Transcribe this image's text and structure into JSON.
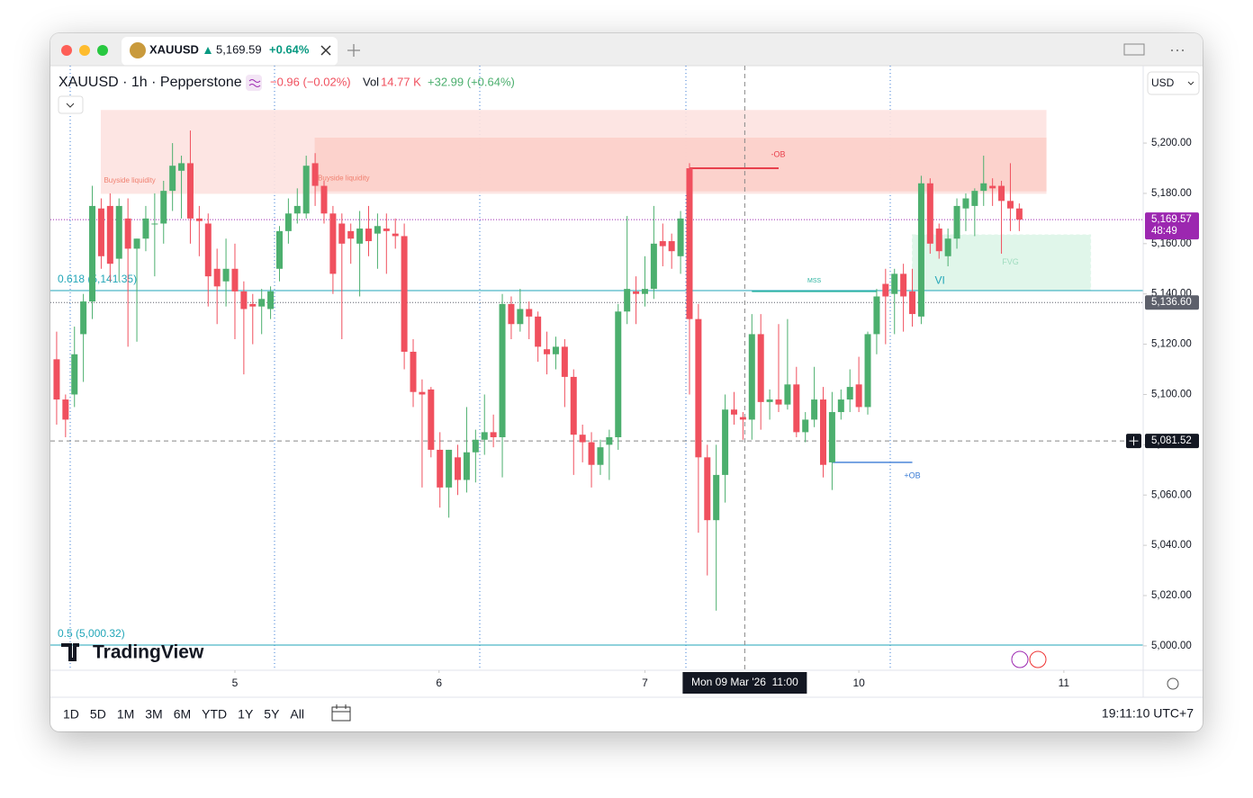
{
  "tab": {
    "symbol": "XAUUSD",
    "price": "5,169.59",
    "change": "+0.64%"
  },
  "legend": {
    "title": "XAUUSD · 1h · Pepperstone",
    "change": "−0.96 (−0.02%)",
    "vol_label": "Vol",
    "vol": "14.77 K",
    "day_change": "+32.99 (+0.64%)"
  },
  "currency": "USD",
  "logo": "TradingView",
  "timeframes": [
    "1D",
    "5D",
    "1M",
    "3M",
    "6M",
    "YTD",
    "1Y",
    "5Y",
    "All"
  ],
  "clock": "19:11:10 UTC+7",
  "chart_data": {
    "type": "candlestick",
    "up_color": "#4caf6e",
    "down_color": "#f0505e",
    "x": [
      0,
      1,
      2,
      3,
      4,
      5,
      6,
      7,
      8,
      9,
      10,
      11,
      12,
      13,
      14,
      15,
      16,
      17,
      18,
      19,
      20,
      21,
      22,
      23,
      24,
      25,
      26,
      27,
      28,
      29,
      30,
      31,
      32,
      33,
      34,
      35,
      36,
      37,
      38,
      39,
      40,
      41,
      42,
      43,
      44,
      45,
      46,
      47,
      48,
      49,
      50,
      51,
      52,
      53,
      54,
      55,
      56,
      57,
      58,
      59,
      60,
      61,
      62,
      63,
      64,
      65,
      66,
      67,
      68,
      69,
      70,
      71,
      72,
      73,
      74,
      75,
      76,
      77,
      78,
      79,
      80,
      81,
      82,
      83,
      84,
      85,
      86,
      87,
      88,
      89,
      90,
      91,
      92,
      93,
      94,
      95,
      96,
      97,
      98,
      99,
      100,
      101,
      102,
      103,
      104,
      105,
      106,
      107,
      108
    ],
    "open": [
      5114,
      5098,
      5100,
      5124,
      5137,
      5174,
      5175,
      5154,
      5170,
      5158,
      5162,
      5168,
      5168,
      5181,
      5189,
      5192,
      5170,
      5168,
      5150,
      5145,
      5150,
      5141,
      5136,
      5135,
      5134,
      5150,
      5165,
      5172,
      5172,
      5192,
      5183,
      5172,
      5168,
      5165,
      5160,
      5166,
      5164,
      5166,
      5164,
      5163,
      5117,
      5101,
      5102,
      5078,
      5063,
      5075,
      5066,
      5077,
      5082,
      5085,
      5083,
      5136,
      5128,
      5134,
      5131,
      5118,
      5116,
      5119,
      5107,
      5084,
      5081,
      5072,
      5080,
      5083,
      5133,
      5141,
      5140,
      5142,
      5161,
      5161,
      5155,
      5190,
      5130,
      5075,
      5050,
      5068,
      5094,
      5091,
      5090,
      5124,
      5097,
      5098,
      5096,
      5104,
      5085,
      5090,
      5098,
      5073,
      5093,
      5098,
      5104,
      5095,
      5124,
      5144,
      5140,
      5148,
      5141,
      5131,
      5184,
      5166,
      5155,
      5162,
      5174,
      5175,
      5181,
      5183,
      5183,
      5177,
      5174
    ],
    "high": [
      5125,
      5100,
      5127,
      5140,
      5183,
      5178,
      5180,
      5178,
      5178,
      5162,
      5175,
      5180,
      5185,
      5200,
      5195,
      5205,
      5175,
      5172,
      5158,
      5162,
      5160,
      5145,
      5140,
      5142,
      5143,
      5167,
      5178,
      5182,
      5195,
      5196,
      5185,
      5175,
      5172,
      5168,
      5173,
      5175,
      5172,
      5172,
      5170,
      5168,
      5122,
      5106,
      5103,
      5085,
      5078,
      5080,
      5095,
      5086,
      5100,
      5092,
      5140,
      5139,
      5142,
      5137,
      5133,
      5125,
      5123,
      5122,
      5110,
      5088,
      5085,
      5082,
      5086,
      5136,
      5171,
      5147,
      5155,
      5175,
      5168,
      5164,
      5173,
      5192,
      5136,
      5080,
      5080,
      5100,
      5101,
      5093,
      5132,
      5132,
      5102,
      5128,
      5130,
      5111,
      5093,
      5111,
      5103,
      5101,
      5102,
      5110,
      5115,
      5125,
      5142,
      5150,
      5150,
      5152,
      5150,
      5187,
      5186,
      5168,
      5166,
      5178,
      5180,
      5182,
      5195,
      5186,
      5185,
      5192,
      5176
    ],
    "low": [
      5088,
      5083,
      5095,
      5105,
      5130,
      5150,
      5145,
      5145,
      5119,
      5121,
      5157,
      5147,
      5160,
      5173,
      5170,
      5160,
      5155,
      5135,
      5128,
      5135,
      5122,
      5108,
      5120,
      5124,
      5130,
      5145,
      5160,
      5168,
      5170,
      5175,
      5168,
      5140,
      5122,
      5152,
      5139,
      5155,
      5150,
      5148,
      5158,
      5110,
      5095,
      5063,
      5075,
      5055,
      5051,
      5060,
      5061,
      5065,
      5076,
      5079,
      5067,
      5122,
      5125,
      5122,
      5113,
      5108,
      5110,
      5095,
      5068,
      5073,
      5063,
      5068,
      5066,
      5078,
      5128,
      5128,
      5135,
      5138,
      5151,
      5150,
      5148,
      5100,
      5045,
      5028,
      5014,
      5057,
      5088,
      5082,
      5082,
      5086,
      5090,
      5093,
      5094,
      5083,
      5081,
      5087,
      5067,
      5062,
      5090,
      5093,
      5093,
      5092,
      5116,
      5120,
      5124,
      5125,
      5127,
      5128,
      5156,
      5154,
      5151,
      5158,
      5165,
      5163,
      5175,
      5175,
      5156,
      5165,
      5165
    ],
    "close": [
      5098,
      5090,
      5116,
      5137,
      5175,
      5155,
      5152,
      5175,
      5158,
      5162,
      5170,
      5168,
      5181,
      5191,
      5192,
      5170,
      5169,
      5147,
      5143,
      5150,
      5141,
      5134,
      5135,
      5138,
      5141,
      5165,
      5172,
      5175,
      5191,
      5183,
      5172,
      5148,
      5160,
      5162,
      5166,
      5161,
      5167,
      5165,
      5163,
      5117,
      5101,
      5100,
      5078,
      5063,
      5078,
      5066,
      5077,
      5082,
      5085,
      5083,
      5136,
      5128,
      5134,
      5131,
      5119,
      5116,
      5119,
      5107,
      5084,
      5081,
      5072,
      5079,
      5083,
      5133,
      5142,
      5140,
      5142,
      5160,
      5159,
      5157,
      5170,
      5130,
      5075,
      5050,
      5068,
      5094,
      5092,
      5090,
      5124,
      5097,
      5098,
      5096,
      5104,
      5085,
      5090,
      5098,
      5072,
      5093,
      5098,
      5103,
      5095,
      5124,
      5139,
      5139,
      5148,
      5139,
      5132,
      5184,
      5160,
      5157,
      5162,
      5175,
      5178,
      5181,
      5184,
      5182,
      5177,
      5174,
      5169.57
    ],
    "xlim": [
      -0.7,
      121.9
    ],
    "ylim": [
      4990.3,
      5230.8
    ],
    "xticks": [
      {
        "value": 20,
        "label": "5"
      },
      {
        "value": 42.9,
        "label": "6"
      },
      {
        "value": 66,
        "label": "7"
      },
      {
        "value": 90,
        "label": "10"
      },
      {
        "value": 113,
        "label": "11"
      }
    ],
    "yticks": [
      {
        "value": 5000,
        "label": "5,000.00"
      },
      {
        "value": 5020,
        "label": "5,020.00"
      },
      {
        "value": 5040,
        "label": "5,040.00"
      },
      {
        "value": 5060,
        "label": "5,060.00"
      },
      {
        "value": 5080,
        "label": "5,080.00"
      },
      {
        "value": 5100,
        "label": "5,100.00"
      },
      {
        "value": 5120,
        "label": "5,120.00"
      },
      {
        "value": 5140,
        "label": "5,140.00"
      },
      {
        "value": 5160,
        "label": "5,160.00"
      },
      {
        "value": 5180,
        "label": "5,180.00"
      },
      {
        "value": 5200,
        "label": "5,200.00"
      }
    ],
    "zones": [
      {
        "label": "Buyside liquidity",
        "x": [
          5,
          111
        ],
        "y": [
          5180,
          5213
        ],
        "color": "#fde3e0"
      },
      {
        "label": "Buyside liquidity",
        "x": [
          29,
          111
        ],
        "y": [
          5181,
          5202
        ],
        "color": "#fcd0ca"
      },
      {
        "label": "FVG",
        "inner_label": "VI",
        "x": [
          96,
          116
        ],
        "y": [
          5141.5,
          5163.5
        ],
        "color": "#ddf6e8"
      }
    ],
    "levels": [
      {
        "label": "-OB",
        "value": 5190,
        "x": [
          71,
          81
        ],
        "color": "#e8404c",
        "label_side": "above"
      },
      {
        "label": "+OB",
        "value": 5073,
        "x": [
          87,
          96
        ],
        "color": "#3a7bd5",
        "label_side": "below"
      },
      {
        "label": "MSS",
        "value": 5141,
        "x": [
          78,
          92
        ],
        "color": "#2bb3a0",
        "label_side": "above"
      }
    ],
    "fib": [
      {
        "value": 5141.35,
        "label": "0.618 (5,141.35)",
        "color": "#22a6b8"
      },
      {
        "value": 5000.32,
        "label": "0.5 (5,000.32)",
        "color": "#22a6b8"
      }
    ],
    "price_tags": [
      {
        "value": 5169.57,
        "label": "5,169.57",
        "countdown": "48:49",
        "color": "#9c27b0"
      },
      {
        "value": 5136.6,
        "label": "5,136.60",
        "color": "#5d606b"
      }
    ],
    "crosshair": {
      "x": 77.2,
      "x_label": "Mon 09 Mar '26  11:00",
      "y": 5081.52,
      "y_label": "5,081.52"
    }
  }
}
